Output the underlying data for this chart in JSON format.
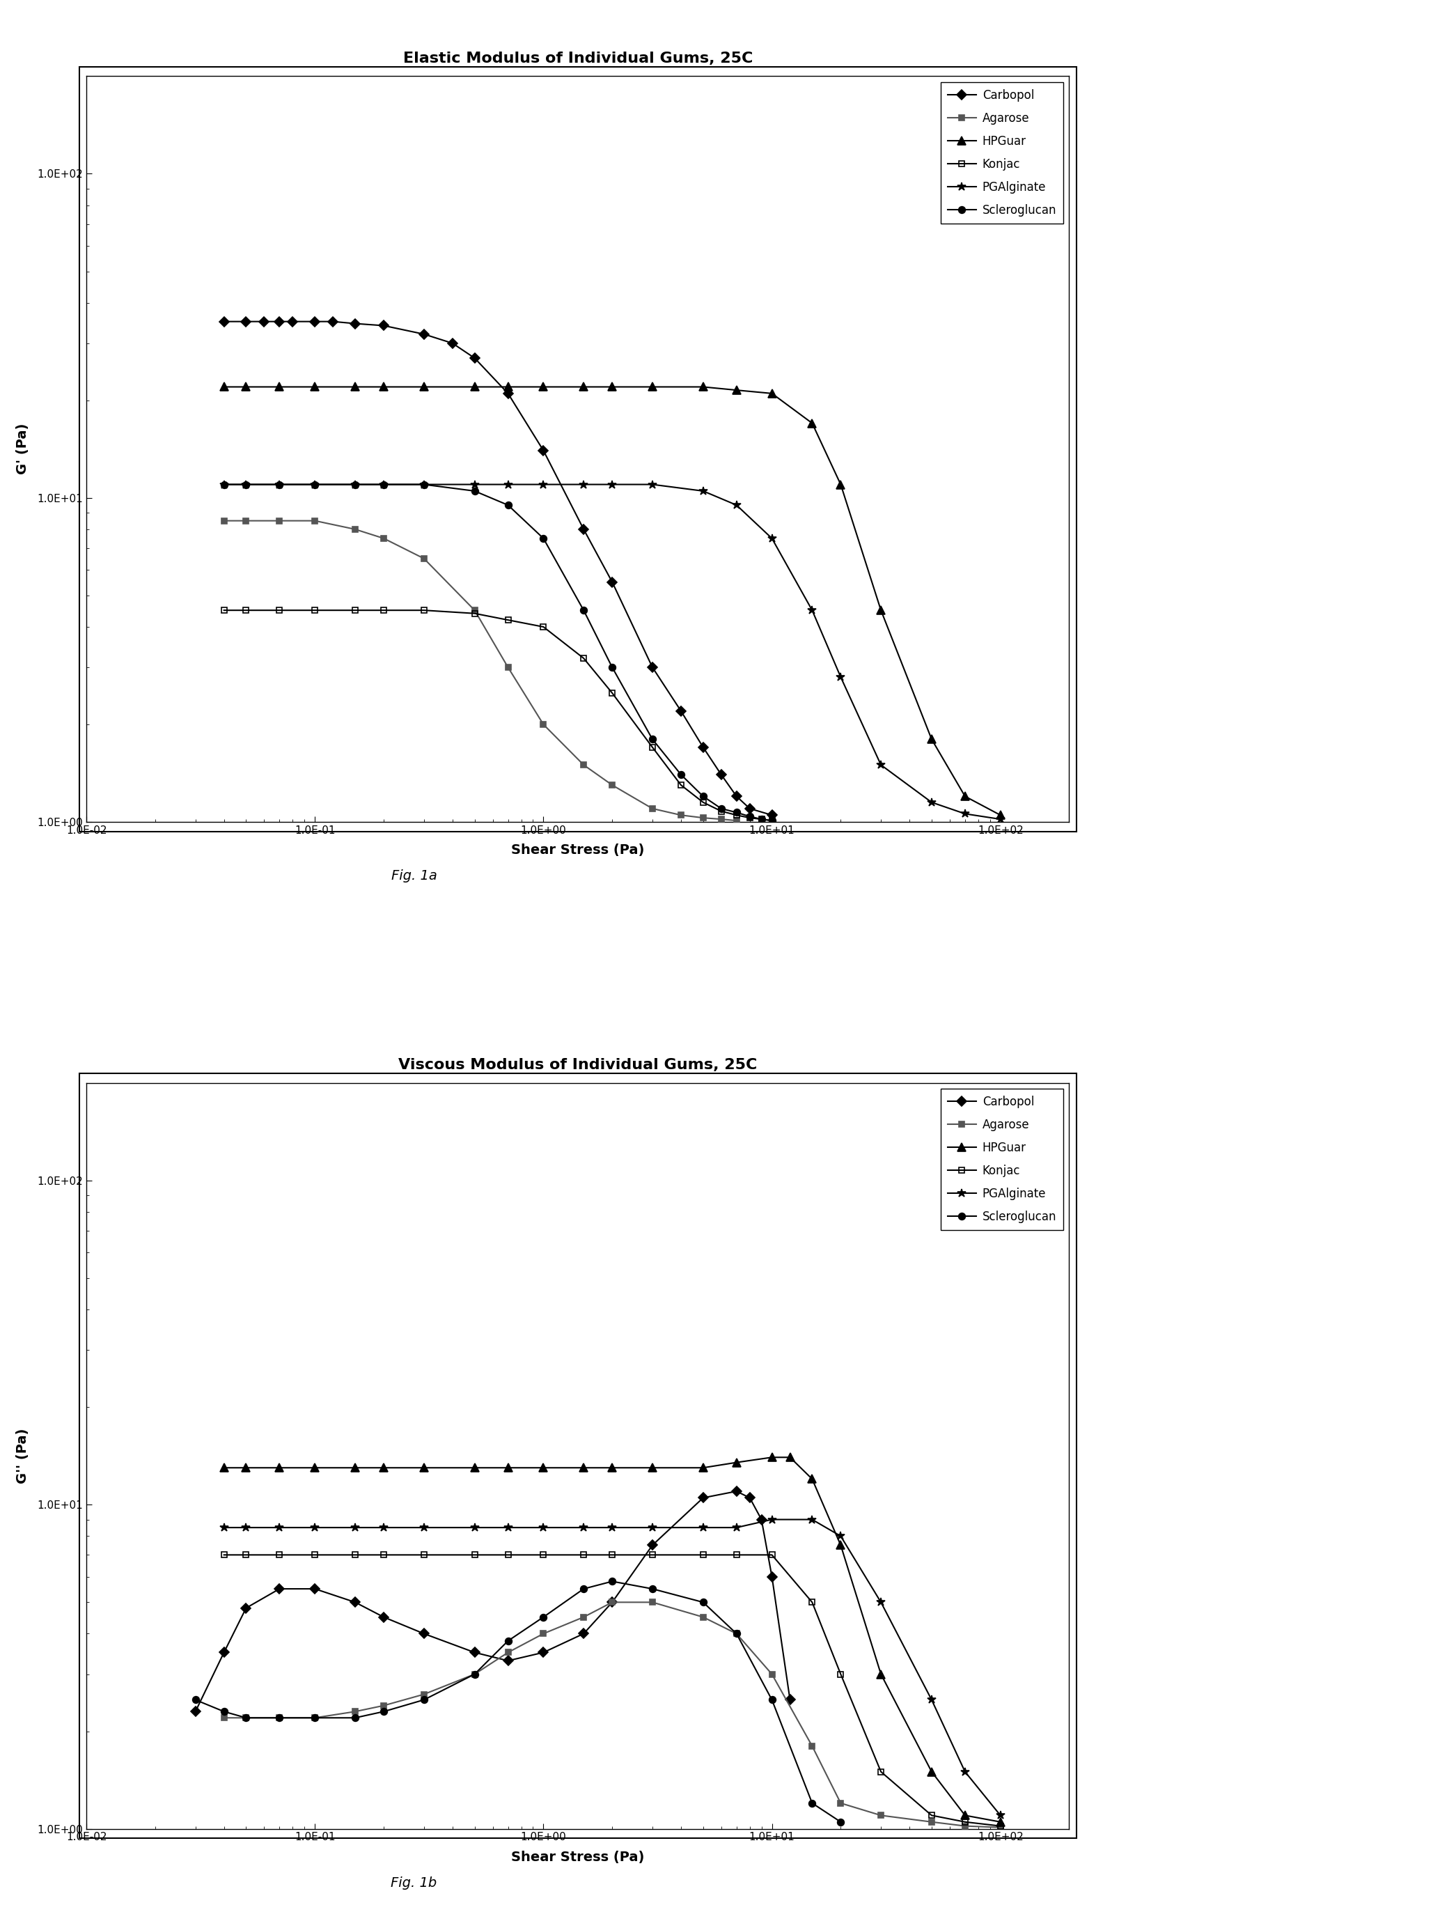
{
  "fig1a": {
    "title": "Elastic Modulus of Individual Gums, 25C",
    "xlabel": "Shear Stress (Pa)",
    "ylabel": "G' (Pa)",
    "caption": "Fig. 1a",
    "series": {
      "Carbopol": {
        "x": [
          0.04,
          0.05,
          0.06,
          0.07,
          0.08,
          0.1,
          0.12,
          0.15,
          0.2,
          0.3,
          0.4,
          0.5,
          0.7,
          1.0,
          1.5,
          2.0,
          3.0,
          4.0,
          5.0,
          6.0,
          7.0,
          8.0,
          10.0
        ],
        "y": [
          35.0,
          35.0,
          35.0,
          35.0,
          35.0,
          35.0,
          35.0,
          34.5,
          34.0,
          32.0,
          30.0,
          27.0,
          21.0,
          14.0,
          8.0,
          5.5,
          3.0,
          2.2,
          1.7,
          1.4,
          1.2,
          1.1,
          1.05
        ],
        "marker": "D",
        "color": "#000000",
        "fillstyle": "full",
        "markersize": 7
      },
      "Agarose": {
        "x": [
          0.04,
          0.05,
          0.07,
          0.1,
          0.15,
          0.2,
          0.3,
          0.5,
          0.7,
          1.0,
          1.5,
          2.0,
          3.0,
          4.0,
          5.0,
          6.0,
          7.0
        ],
        "y": [
          8.5,
          8.5,
          8.5,
          8.5,
          8.0,
          7.5,
          6.5,
          4.5,
          3.0,
          2.0,
          1.5,
          1.3,
          1.1,
          1.05,
          1.03,
          1.02,
          1.01
        ],
        "marker": "s",
        "color": "#555555",
        "fillstyle": "full",
        "markersize": 6
      },
      "HPGuar": {
        "x": [
          0.04,
          0.05,
          0.07,
          0.1,
          0.15,
          0.2,
          0.3,
          0.5,
          0.7,
          1.0,
          1.5,
          2.0,
          3.0,
          5.0,
          7.0,
          10.0,
          15.0,
          20.0,
          30.0,
          50.0,
          70.0,
          100.0
        ],
        "y": [
          22.0,
          22.0,
          22.0,
          22.0,
          22.0,
          22.0,
          22.0,
          22.0,
          22.0,
          22.0,
          22.0,
          22.0,
          22.0,
          22.0,
          21.5,
          21.0,
          17.0,
          11.0,
          4.5,
          1.8,
          1.2,
          1.05
        ],
        "marker": "^",
        "color": "#000000",
        "fillstyle": "full",
        "markersize": 8
      },
      "Konjac": {
        "x": [
          0.04,
          0.05,
          0.07,
          0.1,
          0.15,
          0.2,
          0.3,
          0.5,
          0.7,
          1.0,
          1.5,
          2.0,
          3.0,
          4.0,
          5.0,
          6.0,
          7.0,
          8.0,
          9.0,
          10.0
        ],
        "y": [
          4.5,
          4.5,
          4.5,
          4.5,
          4.5,
          4.5,
          4.5,
          4.4,
          4.2,
          4.0,
          3.2,
          2.5,
          1.7,
          1.3,
          1.15,
          1.08,
          1.05,
          1.03,
          1.02,
          1.01
        ],
        "marker": "s",
        "color": "#000000",
        "fillstyle": "none",
        "markersize": 6
      },
      "PGAlginate": {
        "x": [
          0.04,
          0.05,
          0.07,
          0.1,
          0.15,
          0.2,
          0.3,
          0.5,
          0.7,
          1.0,
          1.5,
          2.0,
          3.0,
          5.0,
          7.0,
          10.0,
          15.0,
          20.0,
          30.0,
          50.0,
          70.0,
          100.0
        ],
        "y": [
          11.0,
          11.0,
          11.0,
          11.0,
          11.0,
          11.0,
          11.0,
          11.0,
          11.0,
          11.0,
          11.0,
          11.0,
          11.0,
          10.5,
          9.5,
          7.5,
          4.5,
          2.8,
          1.5,
          1.15,
          1.06,
          1.02
        ],
        "marker": "*",
        "color": "#000000",
        "fillstyle": "full",
        "markersize": 9
      },
      "Scleroglucan": {
        "x": [
          0.04,
          0.05,
          0.07,
          0.1,
          0.15,
          0.2,
          0.3,
          0.5,
          0.7,
          1.0,
          1.5,
          2.0,
          3.0,
          4.0,
          5.0,
          6.0,
          7.0,
          8.0,
          9.0,
          10.0
        ],
        "y": [
          11.0,
          11.0,
          11.0,
          11.0,
          11.0,
          11.0,
          11.0,
          10.5,
          9.5,
          7.5,
          4.5,
          3.0,
          1.8,
          1.4,
          1.2,
          1.1,
          1.07,
          1.04,
          1.02,
          1.01
        ],
        "marker": "o",
        "color": "#000000",
        "fillstyle": "full",
        "markersize": 7
      }
    }
  },
  "fig1b": {
    "title": "Viscous Modulus of Individual Gums, 25C",
    "xlabel": "Shear Stress (Pa)",
    "ylabel": "G'' (Pa)",
    "caption": "Fig. 1b",
    "series": {
      "Carbopol": {
        "x": [
          0.03,
          0.04,
          0.05,
          0.07,
          0.1,
          0.15,
          0.2,
          0.3,
          0.5,
          0.7,
          1.0,
          1.5,
          2.0,
          3.0,
          5.0,
          7.0,
          8.0,
          9.0,
          10.0,
          12.0
        ],
        "y": [
          2.3,
          3.5,
          4.8,
          5.5,
          5.5,
          5.0,
          4.5,
          4.0,
          3.5,
          3.3,
          3.5,
          4.0,
          5.0,
          7.5,
          10.5,
          11.0,
          10.5,
          9.0,
          6.0,
          2.5
        ],
        "marker": "D",
        "color": "#000000",
        "fillstyle": "full",
        "markersize": 7
      },
      "Agarose": {
        "x": [
          0.04,
          0.05,
          0.07,
          0.1,
          0.15,
          0.2,
          0.3,
          0.5,
          0.7,
          1.0,
          1.5,
          2.0,
          3.0,
          5.0,
          7.0,
          10.0,
          15.0,
          20.0,
          30.0,
          50.0,
          70.0,
          100.0
        ],
        "y": [
          2.2,
          2.2,
          2.2,
          2.2,
          2.3,
          2.4,
          2.6,
          3.0,
          3.5,
          4.0,
          4.5,
          5.0,
          5.0,
          4.5,
          4.0,
          3.0,
          1.8,
          1.2,
          1.1,
          1.05,
          1.02,
          1.01
        ],
        "marker": "s",
        "color": "#555555",
        "fillstyle": "full",
        "markersize": 6
      },
      "HPGuar": {
        "x": [
          0.04,
          0.05,
          0.07,
          0.1,
          0.15,
          0.2,
          0.3,
          0.5,
          0.7,
          1.0,
          1.5,
          2.0,
          3.0,
          5.0,
          7.0,
          10.0,
          12.0,
          15.0,
          20.0,
          30.0,
          50.0,
          70.0,
          100.0
        ],
        "y": [
          13.0,
          13.0,
          13.0,
          13.0,
          13.0,
          13.0,
          13.0,
          13.0,
          13.0,
          13.0,
          13.0,
          13.0,
          13.0,
          13.0,
          13.5,
          14.0,
          14.0,
          12.0,
          7.5,
          3.0,
          1.5,
          1.1,
          1.05
        ],
        "marker": "^",
        "color": "#000000",
        "fillstyle": "full",
        "markersize": 8
      },
      "Konjac": {
        "x": [
          0.04,
          0.05,
          0.07,
          0.1,
          0.15,
          0.2,
          0.3,
          0.5,
          0.7,
          1.0,
          1.5,
          2.0,
          3.0,
          5.0,
          7.0,
          10.0,
          15.0,
          20.0,
          30.0,
          50.0,
          70.0,
          100.0
        ],
        "y": [
          7.0,
          7.0,
          7.0,
          7.0,
          7.0,
          7.0,
          7.0,
          7.0,
          7.0,
          7.0,
          7.0,
          7.0,
          7.0,
          7.0,
          7.0,
          7.0,
          5.0,
          3.0,
          1.5,
          1.1,
          1.05,
          1.02
        ],
        "marker": "s",
        "color": "#000000",
        "fillstyle": "none",
        "markersize": 6
      },
      "PGAlginate": {
        "x": [
          0.04,
          0.05,
          0.07,
          0.1,
          0.15,
          0.2,
          0.3,
          0.5,
          0.7,
          1.0,
          1.5,
          2.0,
          3.0,
          5.0,
          7.0,
          10.0,
          15.0,
          20.0,
          30.0,
          50.0,
          70.0,
          100.0
        ],
        "y": [
          8.5,
          8.5,
          8.5,
          8.5,
          8.5,
          8.5,
          8.5,
          8.5,
          8.5,
          8.5,
          8.5,
          8.5,
          8.5,
          8.5,
          8.5,
          9.0,
          9.0,
          8.0,
          5.0,
          2.5,
          1.5,
          1.1
        ],
        "marker": "*",
        "color": "#000000",
        "fillstyle": "full",
        "markersize": 9
      },
      "Scleroglucan": {
        "x": [
          0.03,
          0.04,
          0.05,
          0.07,
          0.1,
          0.15,
          0.2,
          0.3,
          0.5,
          0.7,
          1.0,
          1.5,
          2.0,
          3.0,
          5.0,
          7.0,
          10.0,
          15.0,
          20.0
        ],
        "y": [
          2.5,
          2.3,
          2.2,
          2.2,
          2.2,
          2.2,
          2.3,
          2.5,
          3.0,
          3.8,
          4.5,
          5.5,
          5.8,
          5.5,
          5.0,
          4.0,
          2.5,
          1.2,
          1.05
        ],
        "marker": "o",
        "color": "#000000",
        "fillstyle": "full",
        "markersize": 7
      }
    }
  },
  "xlim": [
    0.01,
    200.0
  ],
  "ylim": [
    1.0,
    200.0
  ],
  "xticks": [
    0.01,
    0.1,
    1.0,
    10.0,
    100.0
  ],
  "yticks": [
    1.0,
    10.0,
    100.0
  ],
  "xtick_labels": [
    "1.0E-02",
    "1.0E-01",
    "1.0E+00",
    "1.0E+01",
    "1.0E+02"
  ],
  "ytick_labels": [
    "1.0E+00",
    "1.0E+01",
    "1.0E+02"
  ],
  "background_color": "#ffffff",
  "linewidth": 1.5,
  "legend_labels": [
    "Carbopol",
    "Agarose",
    "HPGuar",
    "Konjac",
    "PGAlginate",
    "Scleroglucan"
  ]
}
